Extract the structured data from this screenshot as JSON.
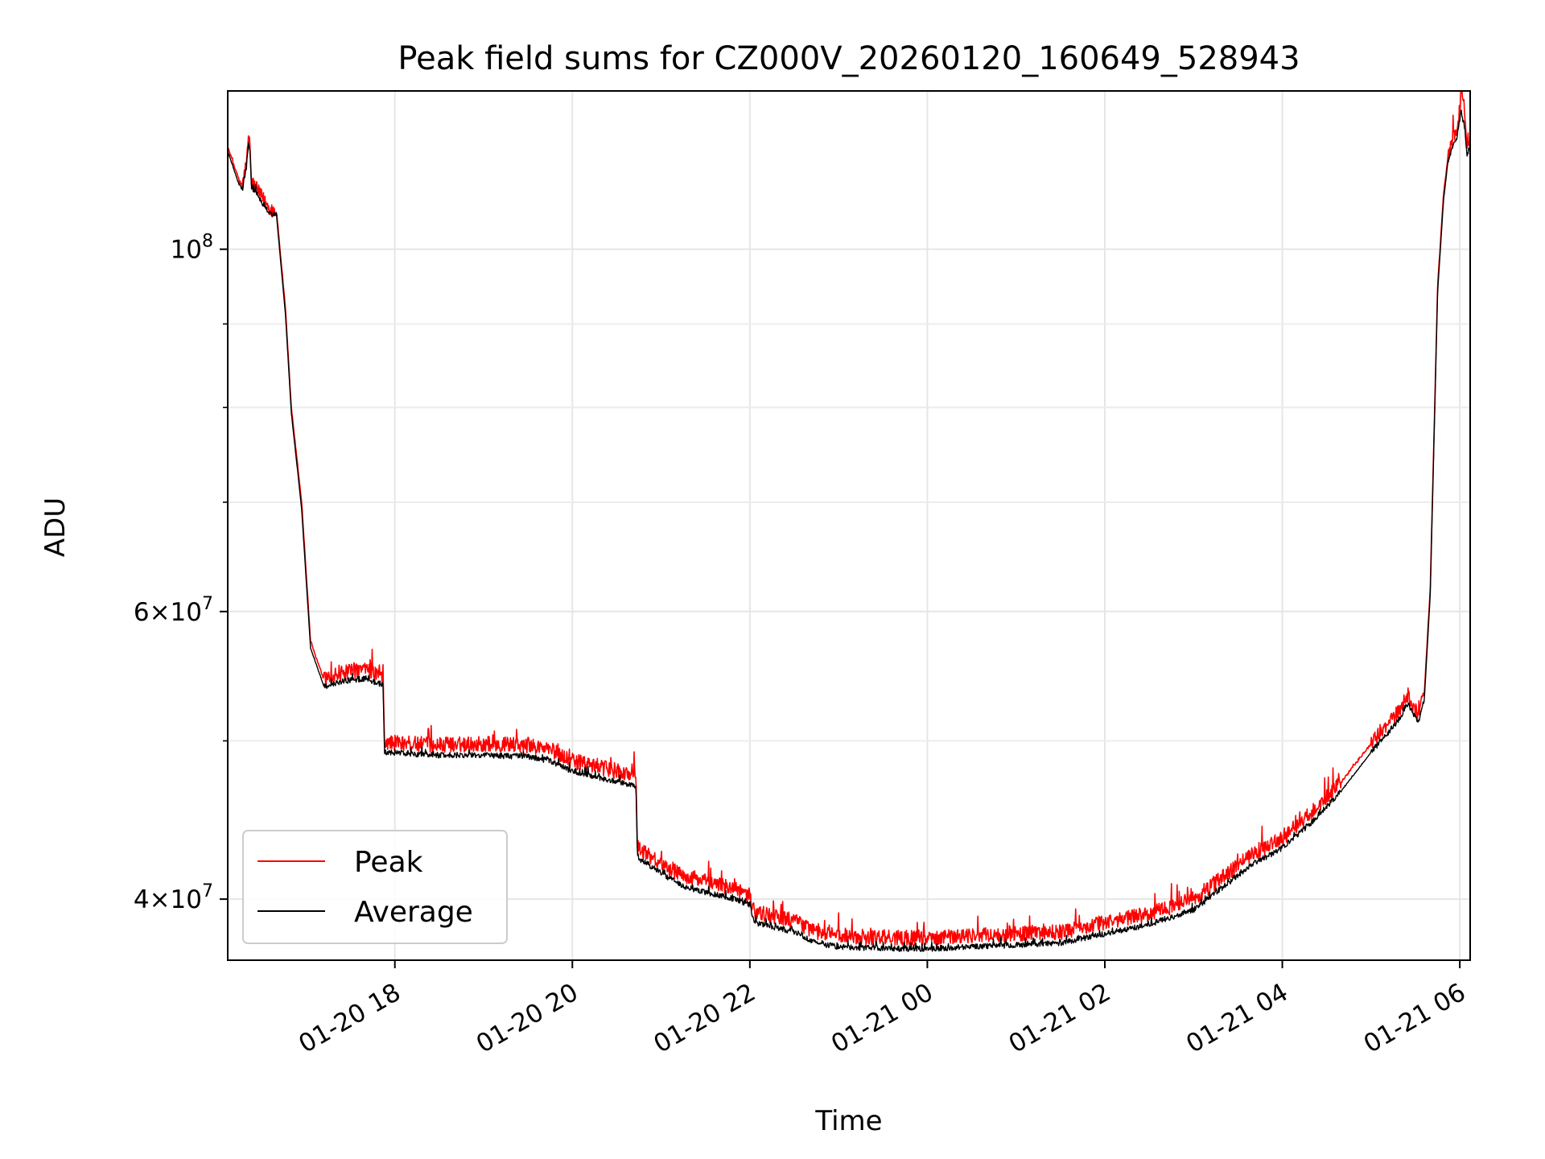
{
  "chart_data": {
    "type": "line",
    "title": "Peak field sums for CZ000V_20260120_160649_528943",
    "xlabel": "Time",
    "ylabel": "ADU",
    "yscale": "log",
    "grid": true,
    "legend_position": "lower-left",
    "xlim": [
      "2026-01-20 16:07",
      "2026-01-21 06:07"
    ],
    "ylim": [
      36700000,
      125000000
    ],
    "x_ticks": [
      {
        "value": "2026-01-20 18:00",
        "label": "01-20 18"
      },
      {
        "value": "2026-01-20 20:00",
        "label": "01-20 20"
      },
      {
        "value": "2026-01-20 22:00",
        "label": "01-20 22"
      },
      {
        "value": "2026-01-21 00:00",
        "label": "01-21 00"
      },
      {
        "value": "2026-01-21 02:00",
        "label": "01-21 02"
      },
      {
        "value": "2026-01-21 04:00",
        "label": "01-21 04"
      },
      {
        "value": "2026-01-21 06:00",
        "label": "01-21 06"
      }
    ],
    "y_major_ticks": [
      {
        "value": 40000000,
        "mantissa": "4",
        "exponent": "7"
      },
      {
        "value": 60000000,
        "mantissa": "6",
        "exponent": "7"
      },
      {
        "value": 100000000,
        "mantissa": "",
        "exponent": "8"
      }
    ],
    "y_minor_ticks": [
      50000000,
      70000000,
      80000000,
      90000000
    ],
    "series": [
      {
        "name": "Peak",
        "color": "#ff0000",
        "noise": 0.022,
        "points": [
          [
            "2026-01-20 16:07",
            115500000
          ],
          [
            "2026-01-20 16:15",
            110000000
          ],
          [
            "2026-01-20 16:17",
            109500000
          ],
          [
            "2026-01-20 16:20",
            113500000
          ],
          [
            "2026-01-20 16:21",
            117000000
          ],
          [
            "2026-01-20 16:22",
            116000000
          ],
          [
            "2026-01-20 16:23",
            110000000
          ],
          [
            "2026-01-20 16:35",
            106000000
          ],
          [
            "2026-01-20 16:40",
            105500000
          ],
          [
            "2026-01-20 16:46",
            92000000
          ],
          [
            "2026-01-20 16:50",
            80000000
          ],
          [
            "2026-01-20 16:57",
            70000000
          ],
          [
            "2026-01-20 17:03",
            57500000
          ],
          [
            "2026-01-20 17:12",
            54500000
          ],
          [
            "2026-01-20 17:25",
            55000000
          ],
          [
            "2026-01-20 17:40",
            55300000
          ],
          [
            "2026-01-20 17:52",
            54800000
          ],
          [
            "2026-01-20 17:53",
            49900000
          ],
          [
            "2026-01-20 18:30",
            49700000
          ],
          [
            "2026-01-20 19:00",
            49800000
          ],
          [
            "2026-01-20 19:30",
            49700000
          ],
          [
            "2026-01-20 19:45",
            49400000
          ],
          [
            "2026-01-20 20:00",
            48600000
          ],
          [
            "2026-01-20 20:30",
            47900000
          ],
          [
            "2026-01-20 20:43",
            47600000
          ],
          [
            "2026-01-20 20:44",
            43000000
          ],
          [
            "2026-01-20 21:15",
            41300000
          ],
          [
            "2026-01-20 21:45",
            40700000
          ],
          [
            "2026-01-20 22:00",
            40200000
          ],
          [
            "2026-01-20 22:03",
            39300000
          ],
          [
            "2026-01-20 22:30",
            38800000
          ],
          [
            "2026-01-20 22:45",
            38200000
          ],
          [
            "2026-01-20 23:00",
            38000000
          ],
          [
            "2026-01-20 23:30",
            37900000
          ],
          [
            "2026-01-21 00:00",
            37900000
          ],
          [
            "2026-01-21 00:30",
            38000000
          ],
          [
            "2026-01-21 01:00",
            38100000
          ],
          [
            "2026-01-21 01:30",
            38200000
          ],
          [
            "2026-01-21 02:00",
            38700000
          ],
          [
            "2026-01-21 02:30",
            39200000
          ],
          [
            "2026-01-21 03:00",
            40000000
          ],
          [
            "2026-01-21 03:20",
            41300000
          ],
          [
            "2026-01-21 03:40",
            42600000
          ],
          [
            "2026-01-21 04:00",
            43600000
          ],
          [
            "2026-01-21 04:20",
            45200000
          ],
          [
            "2026-01-21 04:40",
            47200000
          ],
          [
            "2026-01-21 05:00",
            49800000
          ],
          [
            "2026-01-21 05:18",
            52000000
          ],
          [
            "2026-01-21 05:25",
            53300000
          ],
          [
            "2026-01-21 05:32",
            51800000
          ],
          [
            "2026-01-21 05:36",
            53500000
          ],
          [
            "2026-01-21 05:40",
            62000000
          ],
          [
            "2026-01-21 05:43",
            80000000
          ],
          [
            "2026-01-21 05:45",
            95000000
          ],
          [
            "2026-01-21 05:49",
            108000000
          ],
          [
            "2026-01-21 05:52",
            114000000
          ],
          [
            "2026-01-21 05:55",
            116500000
          ],
          [
            "2026-01-21 05:58",
            118500000
          ],
          [
            "2026-01-21 06:00",
            122000000
          ],
          [
            "2026-01-21 06:01",
            125000000
          ],
          [
            "2026-01-21 06:03",
            122000000
          ],
          [
            "2026-01-21 06:05",
            115000000
          ],
          [
            "2026-01-21 06:07",
            117000000
          ]
        ]
      },
      {
        "name": "Average",
        "color": "#000000",
        "noise": 0.008,
        "points": [
          [
            "2026-01-20 16:07",
            114800000
          ],
          [
            "2026-01-20 16:15",
            109300000
          ],
          [
            "2026-01-20 16:17",
            108800000
          ],
          [
            "2026-01-20 16:20",
            112800000
          ],
          [
            "2026-01-20 16:21",
            116200000
          ],
          [
            "2026-01-20 16:22",
            115200000
          ],
          [
            "2026-01-20 16:23",
            109300000
          ],
          [
            "2026-01-20 16:35",
            105300000
          ],
          [
            "2026-01-20 16:40",
            104800000
          ],
          [
            "2026-01-20 16:46",
            91300000
          ],
          [
            "2026-01-20 16:50",
            79400000
          ],
          [
            "2026-01-20 16:57",
            69300000
          ],
          [
            "2026-01-20 17:03",
            57000000
          ],
          [
            "2026-01-20 17:12",
            54000000
          ],
          [
            "2026-01-20 17:25",
            54400000
          ],
          [
            "2026-01-20 17:40",
            54600000
          ],
          [
            "2026-01-20 17:52",
            54100000
          ],
          [
            "2026-01-20 17:53",
            49200000
          ],
          [
            "2026-01-20 18:30",
            49000000
          ],
          [
            "2026-01-20 19:00",
            49000000
          ],
          [
            "2026-01-20 19:30",
            48900000
          ],
          [
            "2026-01-20 19:45",
            48600000
          ],
          [
            "2026-01-20 20:00",
            47900000
          ],
          [
            "2026-01-20 20:30",
            47200000
          ],
          [
            "2026-01-20 20:43",
            46900000
          ],
          [
            "2026-01-20 20:44",
            42400000
          ],
          [
            "2026-01-20 21:15",
            40700000
          ],
          [
            "2026-01-20 21:45",
            40100000
          ],
          [
            "2026-01-20 22:00",
            39700000
          ],
          [
            "2026-01-20 22:03",
            38700000
          ],
          [
            "2026-01-20 22:30",
            38200000
          ],
          [
            "2026-01-20 22:45",
            37600000
          ],
          [
            "2026-01-20 23:00",
            37400000
          ],
          [
            "2026-01-20 23:30",
            37300000
          ],
          [
            "2026-01-21 00:00",
            37300000
          ],
          [
            "2026-01-21 00:30",
            37400000
          ],
          [
            "2026-01-21 01:00",
            37500000
          ],
          [
            "2026-01-21 01:30",
            37600000
          ],
          [
            "2026-01-21 02:00",
            38100000
          ],
          [
            "2026-01-21 02:30",
            38600000
          ],
          [
            "2026-01-21 03:00",
            39400000
          ],
          [
            "2026-01-21 03:20",
            40700000
          ],
          [
            "2026-01-21 03:40",
            42000000
          ],
          [
            "2026-01-21 04:00",
            43000000
          ],
          [
            "2026-01-21 04:20",
            44600000
          ],
          [
            "2026-01-21 04:40",
            46600000
          ],
          [
            "2026-01-21 05:00",
            49200000
          ],
          [
            "2026-01-21 05:18",
            51400000
          ],
          [
            "2026-01-21 05:25",
            52700000
          ],
          [
            "2026-01-21 05:32",
            51300000
          ],
          [
            "2026-01-21 05:36",
            53000000
          ],
          [
            "2026-01-21 05:40",
            61400000
          ],
          [
            "2026-01-21 05:43",
            79300000
          ],
          [
            "2026-01-21 05:45",
            94200000
          ],
          [
            "2026-01-21 05:49",
            107200000
          ],
          [
            "2026-01-21 05:52",
            113200000
          ],
          [
            "2026-01-21 05:55",
            115600000
          ],
          [
            "2026-01-21 05:58",
            117200000
          ],
          [
            "2026-01-21 06:00",
            120000000
          ],
          [
            "2026-01-21 06:01",
            121500000
          ],
          [
            "2026-01-21 06:03",
            119000000
          ],
          [
            "2026-01-21 06:05",
            114000000
          ],
          [
            "2026-01-21 06:07",
            116000000
          ]
        ]
      }
    ]
  }
}
